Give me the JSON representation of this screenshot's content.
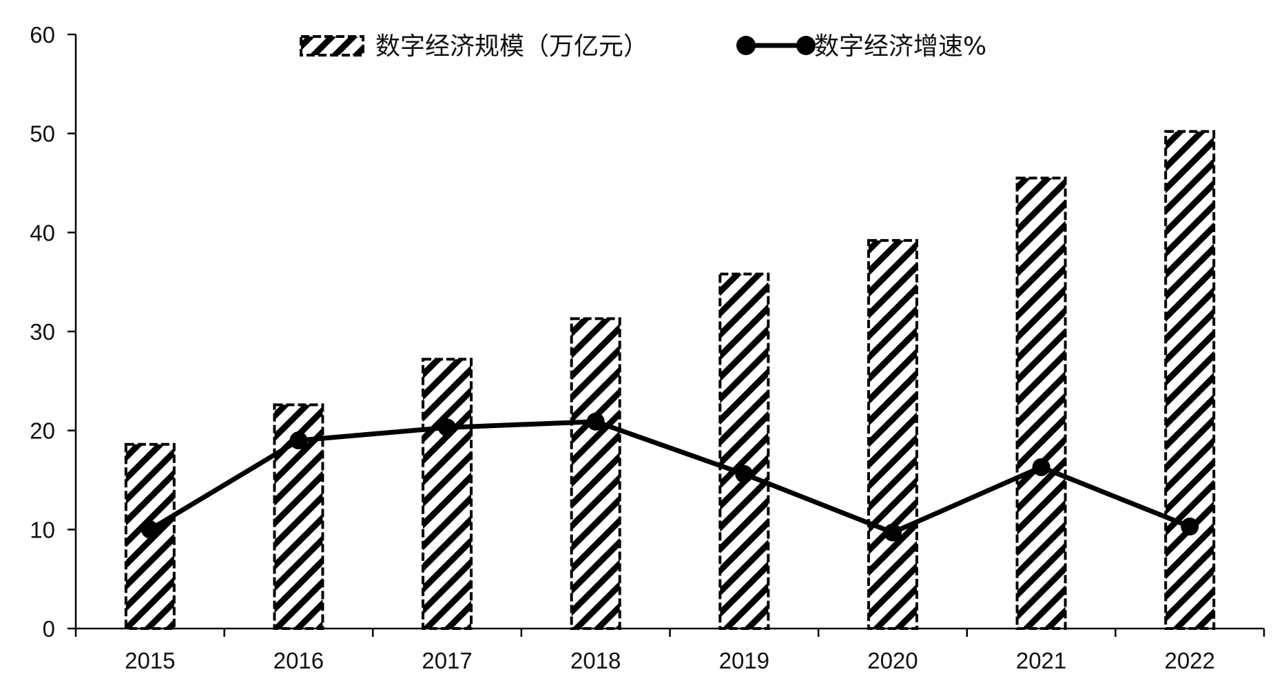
{
  "chart_data": {
    "type": "bar",
    "categories": [
      "2015",
      "2016",
      "2017",
      "2018",
      "2019",
      "2020",
      "2021",
      "2022"
    ],
    "series": [
      {
        "name": "数字经济规模（万亿元）",
        "type": "bar",
        "pattern": "diagonal-hatch",
        "values": [
          18.6,
          22.6,
          27.2,
          31.3,
          35.8,
          39.2,
          45.5,
          50.2
        ]
      },
      {
        "name": "数字经济增速%",
        "type": "line",
        "marker": "circle",
        "values": [
          10.0,
          19.0,
          20.3,
          20.9,
          15.6,
          9.7,
          16.3,
          10.3
        ]
      }
    ],
    "ylim": [
      0,
      60
    ],
    "yticks": [
      "0",
      "10",
      "20",
      "30",
      "40",
      "50",
      "60"
    ],
    "xlabel": "",
    "ylabel": "",
    "grid": false,
    "legend_position": "top-center",
    "colors": {
      "line": "#000000",
      "bar_stroke": "#000000",
      "bar_hatch": "#000000",
      "background": "#ffffff"
    }
  }
}
